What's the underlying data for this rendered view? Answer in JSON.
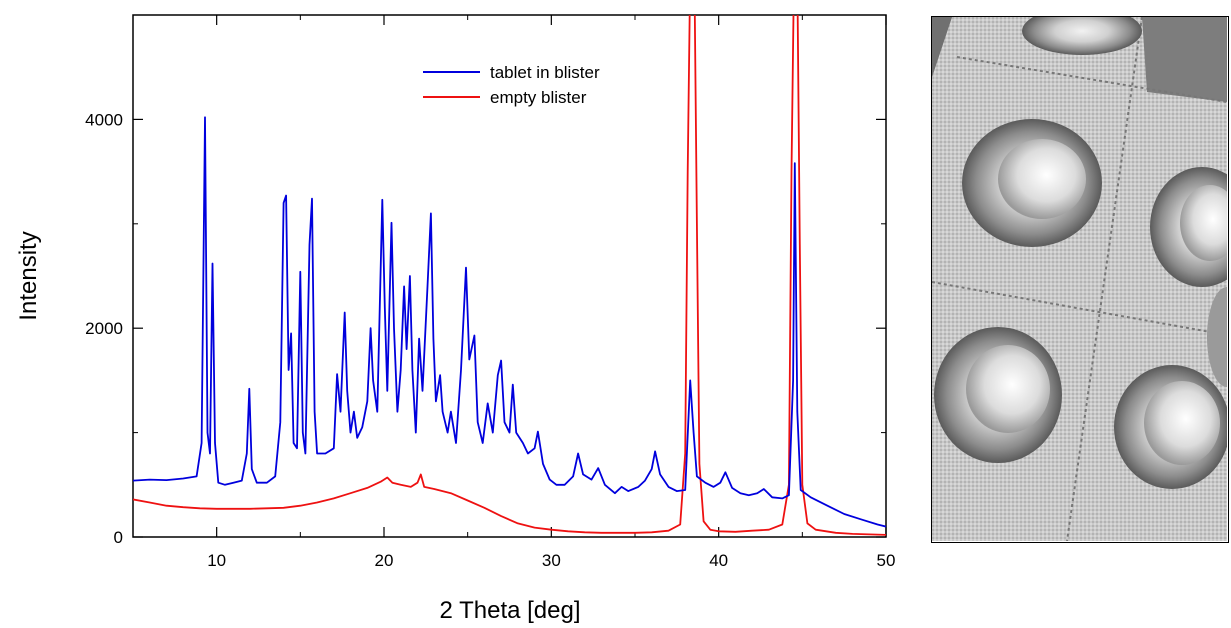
{
  "chart_data": {
    "type": "line",
    "xlabel": "2 Theta [deg]",
    "ylabel": "Intensity",
    "xlim": [
      5,
      50
    ],
    "ylim": [
      0,
      5000
    ],
    "xticks": [
      10,
      20,
      30,
      40,
      50
    ],
    "yticks": [
      0,
      2000,
      4000
    ],
    "legend_position": "top-center",
    "series": [
      {
        "name": "tablet in blister",
        "color": "#0000dd",
        "points": [
          [
            5,
            540
          ],
          [
            6,
            550
          ],
          [
            7,
            545
          ],
          [
            8,
            560
          ],
          [
            8.8,
            580
          ],
          [
            9.1,
            900
          ],
          [
            9.3,
            4020
          ],
          [
            9.45,
            1000
          ],
          [
            9.6,
            800
          ],
          [
            9.75,
            2620
          ],
          [
            9.9,
            900
          ],
          [
            10.1,
            520
          ],
          [
            10.5,
            500
          ],
          [
            11,
            520
          ],
          [
            11.5,
            540
          ],
          [
            11.8,
            800
          ],
          [
            11.95,
            1420
          ],
          [
            12.1,
            650
          ],
          [
            12.4,
            520
          ],
          [
            13,
            520
          ],
          [
            13.5,
            580
          ],
          [
            13.8,
            1100
          ],
          [
            14.0,
            3200
          ],
          [
            14.15,
            3270
          ],
          [
            14.3,
            1600
          ],
          [
            14.45,
            1950
          ],
          [
            14.6,
            900
          ],
          [
            14.8,
            850
          ],
          [
            15.0,
            2540
          ],
          [
            15.15,
            1000
          ],
          [
            15.3,
            800
          ],
          [
            15.55,
            2800
          ],
          [
            15.7,
            3240
          ],
          [
            15.85,
            1200
          ],
          [
            16.0,
            800
          ],
          [
            16.5,
            800
          ],
          [
            17,
            850
          ],
          [
            17.2,
            1560
          ],
          [
            17.4,
            1200
          ],
          [
            17.65,
            2150
          ],
          [
            17.8,
            1400
          ],
          [
            18,
            1000
          ],
          [
            18.2,
            1200
          ],
          [
            18.4,
            950
          ],
          [
            18.7,
            1050
          ],
          [
            19.0,
            1300
          ],
          [
            19.2,
            2000
          ],
          [
            19.35,
            1500
          ],
          [
            19.6,
            1200
          ],
          [
            19.9,
            3230
          ],
          [
            20.05,
            2200
          ],
          [
            20.2,
            1400
          ],
          [
            20.45,
            3010
          ],
          [
            20.6,
            2000
          ],
          [
            20.8,
            1200
          ],
          [
            21.0,
            1600
          ],
          [
            21.2,
            2400
          ],
          [
            21.35,
            1800
          ],
          [
            21.55,
            2500
          ],
          [
            21.7,
            1600
          ],
          [
            21.9,
            1000
          ],
          [
            22.1,
            1900
          ],
          [
            22.3,
            1400
          ],
          [
            22.6,
            2400
          ],
          [
            22.8,
            3100
          ],
          [
            22.95,
            1900
          ],
          [
            23.1,
            1300
          ],
          [
            23.35,
            1550
          ],
          [
            23.5,
            1200
          ],
          [
            23.8,
            1000
          ],
          [
            24.0,
            1200
          ],
          [
            24.3,
            900
          ],
          [
            24.6,
            1600
          ],
          [
            24.9,
            2580
          ],
          [
            25.1,
            1700
          ],
          [
            25.4,
            1930
          ],
          [
            25.6,
            1100
          ],
          [
            25.9,
            900
          ],
          [
            26.2,
            1280
          ],
          [
            26.5,
            1000
          ],
          [
            26.8,
            1550
          ],
          [
            27.0,
            1690
          ],
          [
            27.2,
            1100
          ],
          [
            27.5,
            1000
          ],
          [
            27.7,
            1460
          ],
          [
            27.9,
            1000
          ],
          [
            28.3,
            900
          ],
          [
            28.6,
            800
          ],
          [
            29.0,
            850
          ],
          [
            29.2,
            1010
          ],
          [
            29.5,
            700
          ],
          [
            29.9,
            550
          ],
          [
            30.3,
            500
          ],
          [
            30.8,
            500
          ],
          [
            31.3,
            580
          ],
          [
            31.6,
            800
          ],
          [
            31.9,
            600
          ],
          [
            32.4,
            550
          ],
          [
            32.8,
            660
          ],
          [
            33.2,
            500
          ],
          [
            33.8,
            420
          ],
          [
            34.2,
            480
          ],
          [
            34.6,
            440
          ],
          [
            35.2,
            480
          ],
          [
            35.6,
            540
          ],
          [
            36.0,
            650
          ],
          [
            36.2,
            820
          ],
          [
            36.5,
            600
          ],
          [
            37.0,
            480
          ],
          [
            37.5,
            440
          ],
          [
            38.0,
            450
          ],
          [
            38.3,
            1500
          ],
          [
            38.5,
            1000
          ],
          [
            38.7,
            580
          ],
          [
            39.2,
            520
          ],
          [
            39.7,
            480
          ],
          [
            40.1,
            520
          ],
          [
            40.4,
            620
          ],
          [
            40.8,
            470
          ],
          [
            41.3,
            420
          ],
          [
            41.8,
            400
          ],
          [
            42.3,
            420
          ],
          [
            42.7,
            460
          ],
          [
            43.2,
            380
          ],
          [
            43.8,
            370
          ],
          [
            44.2,
            400
          ],
          [
            44.45,
            1500
          ],
          [
            44.55,
            3580
          ],
          [
            44.7,
            1200
          ],
          [
            44.9,
            450
          ],
          [
            45.5,
            380
          ],
          [
            46.5,
            300
          ],
          [
            47.5,
            220
          ],
          [
            48.5,
            170
          ],
          [
            49.5,
            120
          ],
          [
            50,
            100
          ]
        ]
      },
      {
        "name": "empty blister",
        "color": "#ee1111",
        "points": [
          [
            5,
            360
          ],
          [
            6,
            330
          ],
          [
            7,
            300
          ],
          [
            8,
            285
          ],
          [
            9,
            275
          ],
          [
            10,
            270
          ],
          [
            11,
            270
          ],
          [
            12,
            270
          ],
          [
            13,
            275
          ],
          [
            14,
            280
          ],
          [
            15,
            300
          ],
          [
            16,
            330
          ],
          [
            17,
            370
          ],
          [
            18,
            420
          ],
          [
            19,
            470
          ],
          [
            19.8,
            530
          ],
          [
            20.2,
            570
          ],
          [
            20.5,
            520
          ],
          [
            21,
            500
          ],
          [
            21.6,
            480
          ],
          [
            22.0,
            520
          ],
          [
            22.2,
            600
          ],
          [
            22.4,
            480
          ],
          [
            23,
            460
          ],
          [
            24,
            420
          ],
          [
            25,
            350
          ],
          [
            26,
            280
          ],
          [
            27,
            200
          ],
          [
            28,
            130
          ],
          [
            29,
            90
          ],
          [
            30,
            70
          ],
          [
            31,
            55
          ],
          [
            32,
            45
          ],
          [
            33,
            40
          ],
          [
            34,
            40
          ],
          [
            35,
            40
          ],
          [
            36,
            45
          ],
          [
            37,
            60
          ],
          [
            37.7,
            120
          ],
          [
            38.0,
            800
          ],
          [
            38.15,
            3500
          ],
          [
            38.3,
            5400
          ],
          [
            38.55,
            5400
          ],
          [
            38.7,
            3000
          ],
          [
            38.85,
            700
          ],
          [
            39.1,
            150
          ],
          [
            39.5,
            70
          ],
          [
            40,
            55
          ],
          [
            41,
            50
          ],
          [
            42,
            60
          ],
          [
            43,
            70
          ],
          [
            43.8,
            120
          ],
          [
            44.2,
            500
          ],
          [
            44.35,
            3500
          ],
          [
            44.5,
            5400
          ],
          [
            44.7,
            5400
          ],
          [
            44.85,
            2800
          ],
          [
            45.0,
            500
          ],
          [
            45.3,
            130
          ],
          [
            45.8,
            70
          ],
          [
            47,
            40
          ],
          [
            48,
            30
          ],
          [
            49,
            25
          ],
          [
            50,
            20
          ]
        ]
      }
    ]
  }
}
